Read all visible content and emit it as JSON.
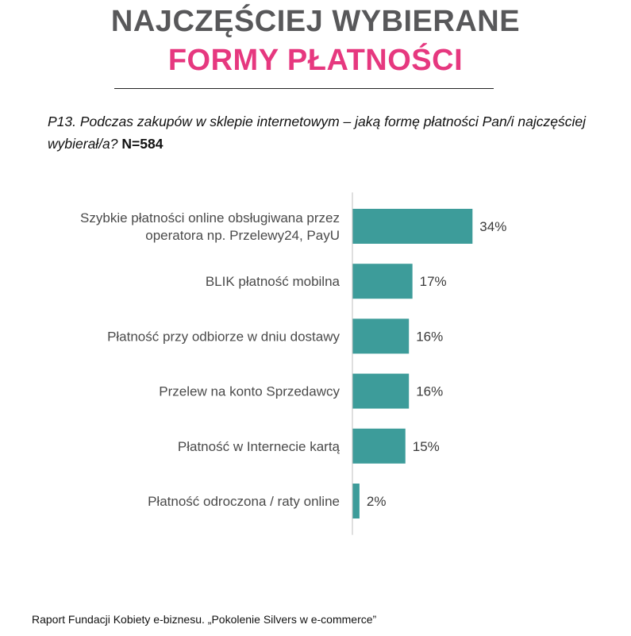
{
  "title": {
    "line1": "NAJCZĘŚCIEJ WYBIERANE",
    "line2": "FORMY PŁATNOŚCI"
  },
  "question": {
    "text": "P13. Podczas zakupów w sklepie internetowym – jaką formę płatności Pan/i najczęściej wybierał/a?",
    "sample": "N=584"
  },
  "footer": {
    "source": "Raport Fundacji Kobiety e-biznesu. „Pokolenie Silvers w e-commerce”"
  },
  "colors": {
    "bar": "#3d9c9a",
    "title_dark": "#58585a",
    "title_accent": "#e6387f"
  },
  "chart_data": {
    "type": "bar",
    "orientation": "horizontal",
    "categories": [
      [
        "Szybkie płatności online obsługiwana przez",
        "operatora np. Przelewy24, PayU"
      ],
      [
        "BLIK płatność mobilna"
      ],
      [
        "Płatność przy odbiorze w dniu dostawy"
      ],
      [
        "Przelew na konto Sprzedawcy"
      ],
      [
        "Płatność w Internecie kartą"
      ],
      [
        "Płatność odroczona / raty online"
      ]
    ],
    "values": [
      34,
      17,
      16,
      16,
      15,
      2
    ],
    "value_labels": [
      "34%",
      "17%",
      "16%",
      "16%",
      "15%",
      "2%"
    ],
    "unit": "%",
    "xlim": [
      0,
      100
    ],
    "grid": false,
    "legend": "none"
  }
}
